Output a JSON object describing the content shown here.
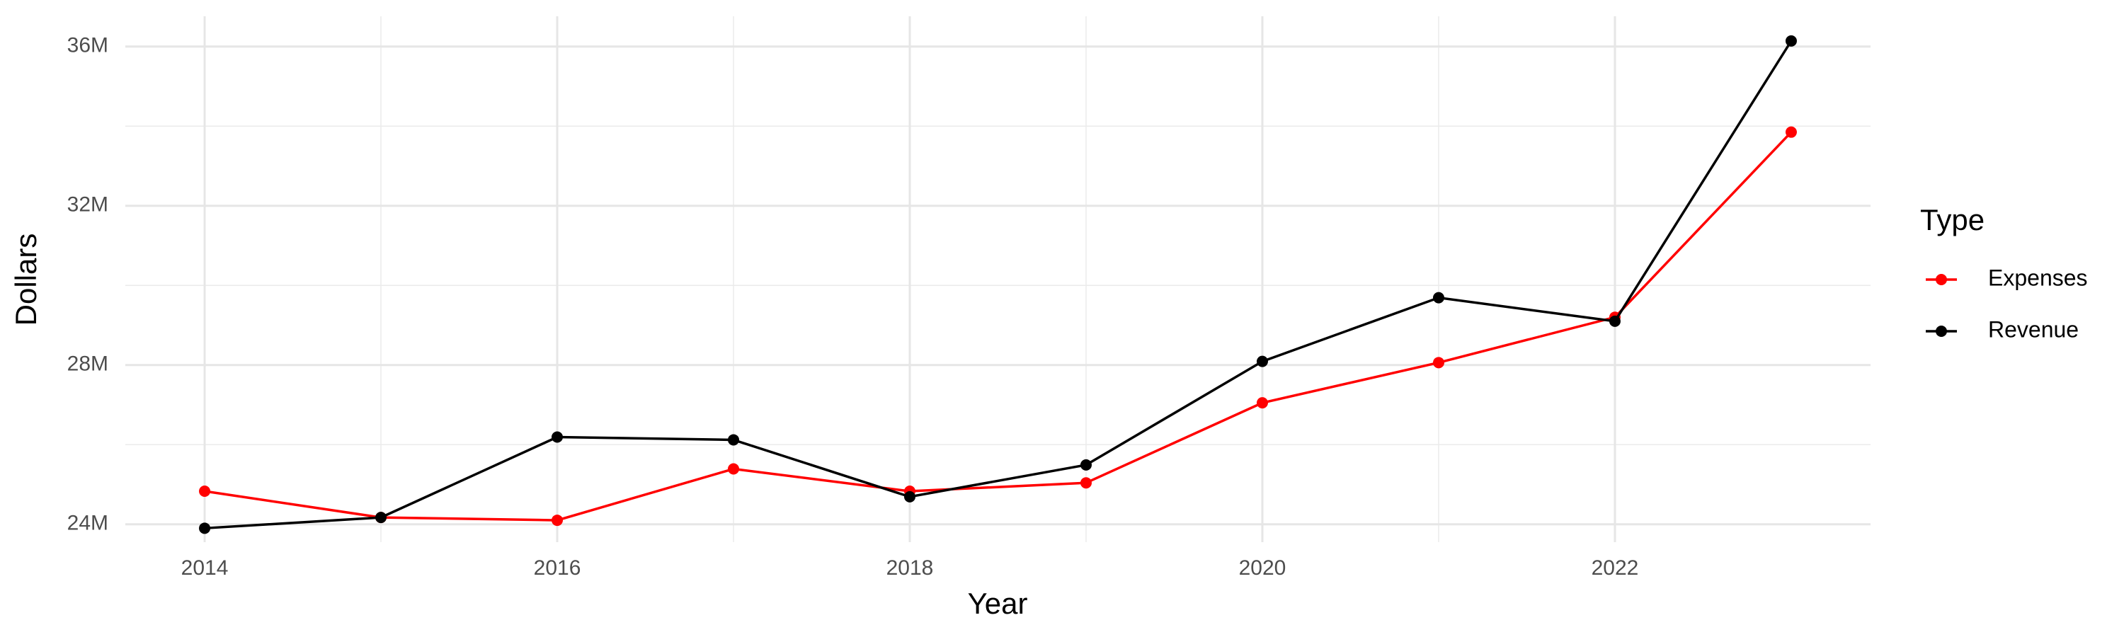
{
  "chart_data": {
    "type": "line",
    "x_label": "Year",
    "y_label": "Dollars",
    "legend_title": "Type",
    "x": [
      2014,
      2015,
      2016,
      2017,
      2018,
      2019,
      2020,
      2021,
      2022,
      2023
    ],
    "series": [
      {
        "name": "Expenses",
        "color": "#ff0000",
        "values": [
          24830000,
          24170000,
          24100000,
          25390000,
          24830000,
          25040000,
          27050000,
          28060000,
          29200000,
          33850000
        ]
      },
      {
        "name": "Revenue",
        "color": "#000000",
        "values": [
          23900000,
          24170000,
          26190000,
          26120000,
          24690000,
          25490000,
          28090000,
          29690000,
          29100000,
          36140000
        ]
      }
    ],
    "xlim": [
      2013.55,
      2023.45
    ],
    "xticks": [
      2014,
      2016,
      2018,
      2020,
      2022
    ],
    "ylim": [
      23550000,
      36760000
    ],
    "yticks": [
      {
        "value": 24000000,
        "label": "24M"
      },
      {
        "value": 28000000,
        "label": "28M"
      },
      {
        "value": 32000000,
        "label": "32M"
      },
      {
        "value": 36000000,
        "label": "36M"
      }
    ],
    "grid": true,
    "legend": "right"
  }
}
